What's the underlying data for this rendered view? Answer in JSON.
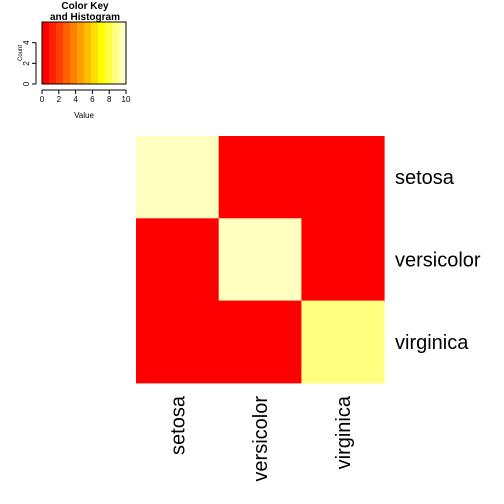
{
  "chart_data": [
    {
      "type": "heatmap",
      "rows": [
        "setosa",
        "versicolor",
        "virginica"
      ],
      "columns": [
        "setosa",
        "versicolor",
        "virginica"
      ],
      "values": [
        [
          10.0,
          0.0,
          0.0
        ],
        [
          0.0,
          10.0,
          0.5
        ],
        [
          0.0,
          0.0,
          8.6
        ]
      ],
      "colormap": [
        "#FF0000",
        "#FF2000",
        "#FF4000",
        "#FF6000",
        "#FF8000",
        "#FF9F00",
        "#FFBF00",
        "#FFDF00",
        "#FFFF00",
        "#FFFF40",
        "#FFFF80",
        "#FFFFBF"
      ],
      "value_range": [
        0,
        10
      ]
    },
    {
      "type": "bar",
      "title": "Color Key\nand Histogram",
      "xlabel": "Value",
      "ylabel": "Count",
      "xlim": [
        0,
        10
      ],
      "ylim": [
        0,
        6
      ],
      "x_ticks": [
        "0",
        "2",
        "4",
        "6",
        "8",
        "10"
      ],
      "y_ticks": [
        "0",
        "2",
        "4"
      ],
      "grid": false
    }
  ]
}
